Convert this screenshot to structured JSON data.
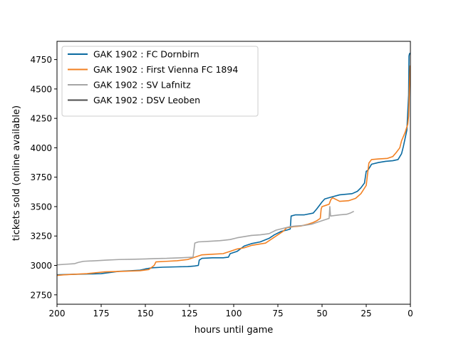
{
  "chart_data": {
    "type": "line",
    "title": "",
    "xlabel": "hours until game",
    "ylabel": "tickets sold (online available)",
    "xlim": [
      200,
      0
    ],
    "ylim": [
      2670,
      4905
    ],
    "x_reversed": true,
    "grid": false,
    "legend_position": "top-left",
    "xticks": [
      200,
      175,
      150,
      125,
      100,
      75,
      50,
      25,
      0
    ],
    "yticks": [
      2750,
      3000,
      3250,
      3500,
      3750,
      4000,
      4250,
      4500,
      4750
    ],
    "series": [
      {
        "name": "GAK 1902 : FC Dornbirn",
        "color": "#0a6aa0",
        "points": [
          [
            200,
            2920
          ],
          [
            190,
            2925
          ],
          [
            180,
            2928
          ],
          [
            175,
            2930
          ],
          [
            170,
            2940
          ],
          [
            165,
            2950
          ],
          [
            158,
            2955
          ],
          [
            153,
            2960
          ],
          [
            150,
            2970
          ],
          [
            146,
            2980
          ],
          [
            140,
            2985
          ],
          [
            132,
            2988
          ],
          [
            126,
            2990
          ],
          [
            122,
            2995
          ],
          [
            120,
            3000
          ],
          [
            119.5,
            3045
          ],
          [
            118,
            3060
          ],
          [
            112,
            3065
          ],
          [
            106,
            3065
          ],
          [
            103,
            3070
          ],
          [
            102,
            3100
          ],
          [
            98,
            3120
          ],
          [
            94,
            3165
          ],
          [
            90,
            3185
          ],
          [
            85,
            3200
          ],
          [
            80,
            3230
          ],
          [
            77,
            3260
          ],
          [
            73,
            3290
          ],
          [
            70,
            3300
          ],
          [
            68,
            3310
          ],
          [
            67.5,
            3420
          ],
          [
            65,
            3430
          ],
          [
            60,
            3430
          ],
          [
            55,
            3445
          ],
          [
            53,
            3480
          ],
          [
            52,
            3500
          ],
          [
            50,
            3540
          ],
          [
            48.5,
            3565
          ],
          [
            45,
            3580
          ],
          [
            40,
            3600
          ],
          [
            33,
            3610
          ],
          [
            30,
            3630
          ],
          [
            28,
            3660
          ],
          [
            26,
            3700
          ],
          [
            25,
            3800
          ],
          [
            24,
            3810
          ],
          [
            22,
            3860
          ],
          [
            18,
            3875
          ],
          [
            14,
            3885
          ],
          [
            10,
            3890
          ],
          [
            7,
            3900
          ],
          [
            5,
            3950
          ],
          [
            4,
            4010
          ],
          [
            3,
            4080
          ],
          [
            2,
            4150
          ],
          [
            1.5,
            4300
          ],
          [
            1,
            4450
          ],
          [
            0.8,
            4780
          ],
          [
            0.5,
            4800
          ],
          [
            0,
            4805
          ]
        ]
      },
      {
        "name": "GAK 1902 : First Vienna FC 1894",
        "color": "#f28022",
        "points": [
          [
            200,
            2915
          ],
          [
            196,
            2920
          ],
          [
            190,
            2925
          ],
          [
            183,
            2930
          ],
          [
            178,
            2938
          ],
          [
            173,
            2945
          ],
          [
            163,
            2950
          ],
          [
            153,
            2955
          ],
          [
            148,
            2965
          ],
          [
            145,
            3000
          ],
          [
            144,
            3030
          ],
          [
            138,
            3035
          ],
          [
            132,
            3040
          ],
          [
            126,
            3050
          ],
          [
            121,
            3075
          ],
          [
            118,
            3090
          ],
          [
            112,
            3095
          ],
          [
            106,
            3100
          ],
          [
            102,
            3120
          ],
          [
            98,
            3140
          ],
          [
            94,
            3150
          ],
          [
            90,
            3170
          ],
          [
            86,
            3180
          ],
          [
            82,
            3190
          ],
          [
            78,
            3230
          ],
          [
            75,
            3260
          ],
          [
            72,
            3290
          ],
          [
            70,
            3320
          ],
          [
            66,
            3330
          ],
          [
            62,
            3335
          ],
          [
            58,
            3350
          ],
          [
            55,
            3365
          ],
          [
            53,
            3380
          ],
          [
            51,
            3400
          ],
          [
            50.5,
            3480
          ],
          [
            50,
            3500
          ],
          [
            48,
            3510
          ],
          [
            46,
            3520
          ],
          [
            45,
            3560
          ],
          [
            44,
            3575
          ],
          [
            40,
            3545
          ],
          [
            35,
            3550
          ],
          [
            31,
            3570
          ],
          [
            28,
            3610
          ],
          [
            25,
            3680
          ],
          [
            23.5,
            3870
          ],
          [
            22,
            3900
          ],
          [
            18,
            3905
          ],
          [
            13,
            3910
          ],
          [
            10,
            3925
          ],
          [
            8,
            3960
          ],
          [
            6,
            4000
          ],
          [
            5,
            4060
          ],
          [
            3,
            4130
          ],
          [
            1.5,
            4200
          ],
          [
            1,
            4270
          ],
          [
            0.6,
            4500
          ],
          [
            0.2,
            4700
          ]
        ]
      },
      {
        "name": "GAK 1902 : SV Lafnitz",
        "color": "#a6a6a6",
        "points": [
          [
            200,
            3005
          ],
          [
            195,
            3010
          ],
          [
            190,
            3015
          ],
          [
            188,
            3025
          ],
          [
            185,
            3035
          ],
          [
            178,
            3040
          ],
          [
            172,
            3045
          ],
          [
            165,
            3050
          ],
          [
            158,
            3052
          ],
          [
            150,
            3055
          ],
          [
            145,
            3058
          ],
          [
            138,
            3060
          ],
          [
            130,
            3065
          ],
          [
            123,
            3070
          ],
          [
            122,
            3190
          ],
          [
            120,
            3200
          ],
          [
            114,
            3205
          ],
          [
            108,
            3210
          ],
          [
            105,
            3215
          ],
          [
            102,
            3220
          ],
          [
            98,
            3235
          ],
          [
            94,
            3245
          ],
          [
            90,
            3255
          ],
          [
            85,
            3260
          ],
          [
            80,
            3270
          ],
          [
            76,
            3300
          ],
          [
            72,
            3315
          ],
          [
            68,
            3330
          ],
          [
            65,
            3335
          ],
          [
            60,
            3340
          ],
          [
            56,
            3350
          ],
          [
            53,
            3365
          ],
          [
            50,
            3380
          ],
          [
            48,
            3390
          ],
          [
            46,
            3400
          ],
          [
            45.6,
            3500
          ],
          [
            45.2,
            3420
          ],
          [
            40,
            3430
          ],
          [
            36,
            3435
          ],
          [
            34,
            3445
          ],
          [
            32,
            3460
          ]
        ]
      },
      {
        "name": "GAK 1902 : DSV Leoben",
        "color": "#4d4d4d",
        "points": []
      }
    ]
  }
}
